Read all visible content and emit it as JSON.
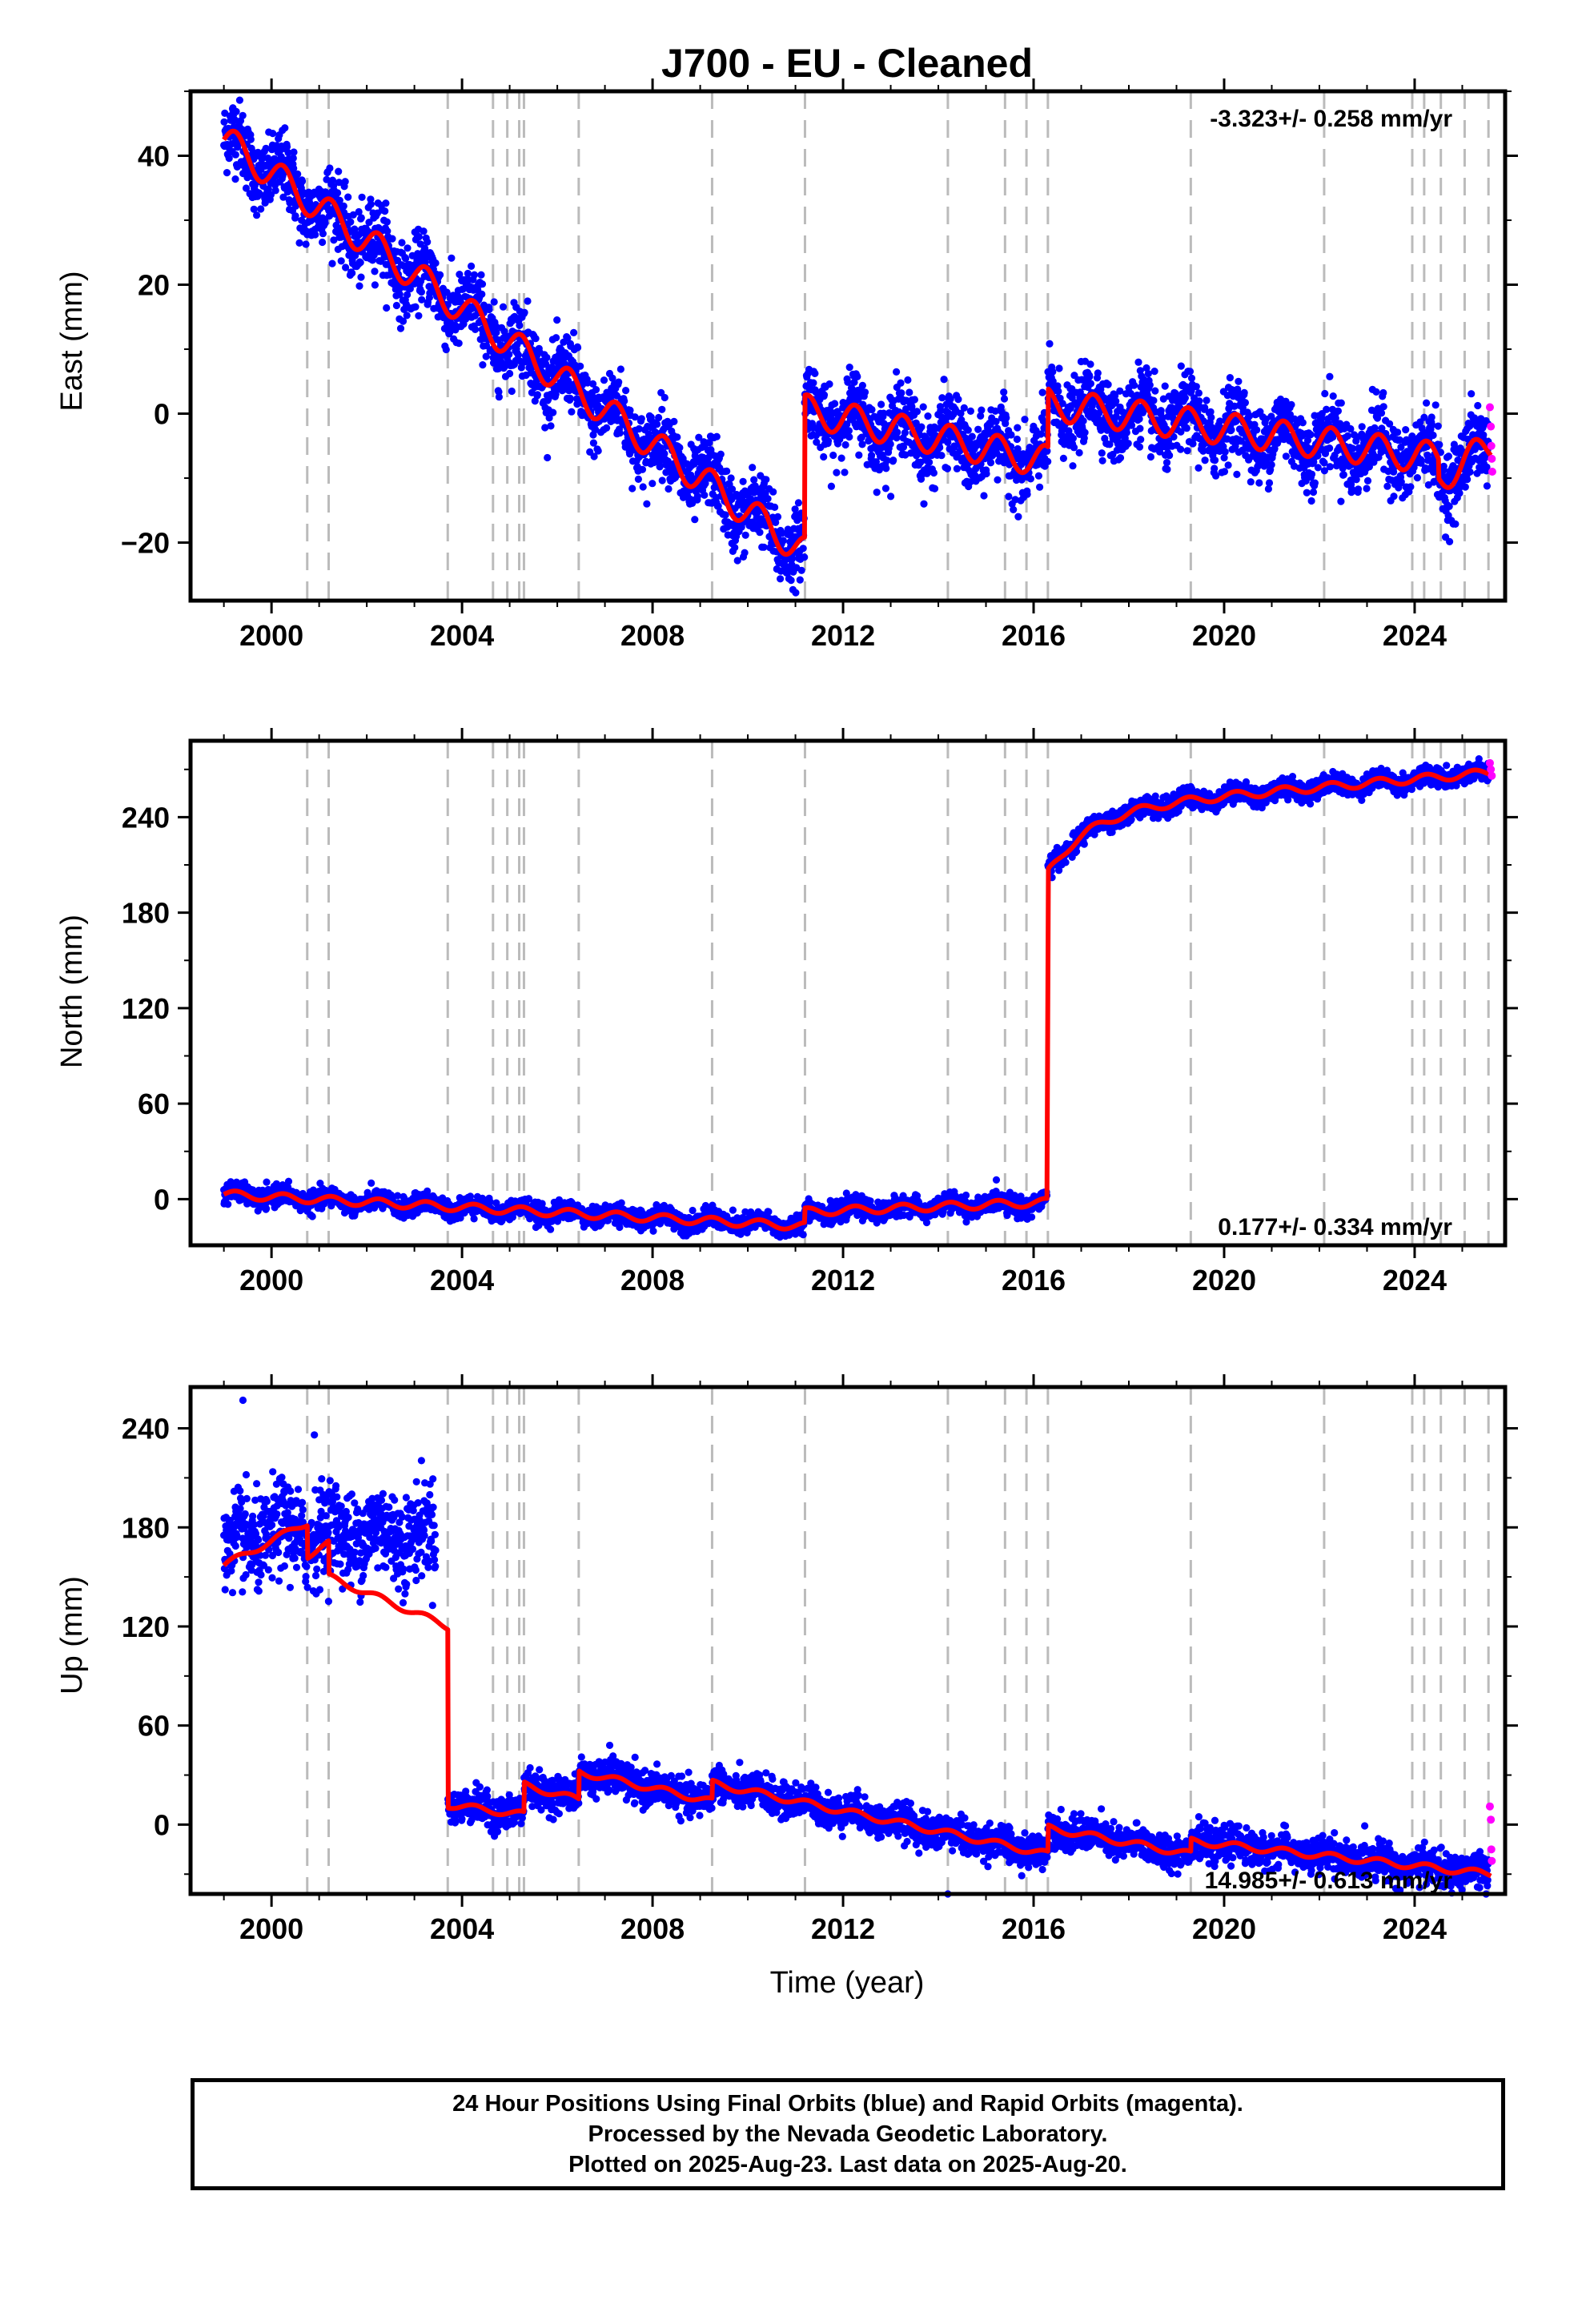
{
  "title": "J700  - EU - Cleaned",
  "colors": {
    "final_orbits": "#0000ff",
    "rapid_orbits": "#ff00ff",
    "model": "#ff0000",
    "event_lines": "#bbbbbb",
    "frame": "#000000"
  },
  "caption": {
    "line1": "24 Hour Positions Using Final Orbits (blue) and Rapid Orbits (magenta).",
    "line2": "Processed by the Nevada Geodetic Laboratory.",
    "line3": "Plotted on 2025-Aug-23. Last data on 2025-Aug-20."
  },
  "chart_data": [
    {
      "type": "scatter",
      "panel": "East",
      "title": "J700  - EU - Cleaned",
      "xlabel": "",
      "ylabel": "East (mm)",
      "xlim": [
        1998.3,
        2025.9
      ],
      "ylim": [
        -29,
        50
      ],
      "xticks": [
        2000,
        2004,
        2008,
        2012,
        2016,
        2020,
        2024
      ],
      "yticks": [
        -20,
        0,
        20,
        40
      ],
      "ytick_labels": [
        "−20",
        "0",
        "20",
        "40"
      ],
      "rate": "-3.323+/- 0.258 mm/yr",
      "rate_position": "top-right",
      "grid": false,
      "event_lines": [
        2000.75,
        2001.2,
        2003.7,
        2004.65,
        2004.95,
        2005.2,
        2005.3,
        2006.45,
        2009.25,
        2011.2,
        2014.2,
        2015.4,
        2015.85,
        2016.3,
        2019.3,
        2022.1,
        2023.95,
        2024.2,
        2024.55,
        2025.05,
        2025.55
      ],
      "model": {
        "offsets": [
          {
            "epoch": 2011.19,
            "step": 24
          },
          {
            "epoch": 2016.3,
            "step": 9
          }
        ],
        "seasonal_amplitude": 2.5,
        "segments": [
          {
            "start": 1999.0,
            "end": 2011.19,
            "value_start": 42.5,
            "value_end": -21.5
          },
          {
            "start": 2011.19,
            "end": 2016.3,
            "value_start": 0.5,
            "value_end": -7.5
          },
          {
            "start": 2016.3,
            "end": 2024.5,
            "value_start": 1.5,
            "value_end": -7
          },
          {
            "start": 2024.5,
            "end": 2025.6,
            "value_start": -10,
            "value_end": -5
          }
        ]
      },
      "final_scatter": {
        "noise": 2.8,
        "epochs_start": 1999.0,
        "epochs_end": 2025.55
      },
      "rapid_points": [
        {
          "x": 2025.58,
          "y": 1
        },
        {
          "x": 2025.6,
          "y": -2
        },
        {
          "x": 2025.61,
          "y": -5
        },
        {
          "x": 2025.62,
          "y": -7
        },
        {
          "x": 2025.63,
          "y": -9
        }
      ]
    },
    {
      "type": "scatter",
      "panel": "North",
      "xlabel": "",
      "ylabel": "North (mm)",
      "xlim": [
        1998.3,
        2025.9
      ],
      "ylim": [
        -29,
        288
      ],
      "xticks": [
        2000,
        2004,
        2008,
        2012,
        2016,
        2020,
        2024
      ],
      "yticks": [
        0,
        60,
        120,
        180,
        240
      ],
      "ytick_labels": [
        "0",
        "60",
        "120",
        "180",
        "240"
      ],
      "rate": "0.177+/- 0.334 mm/yr",
      "rate_position": "bottom-right",
      "grid": false,
      "event_lines": [
        2000.75,
        2001.2,
        2003.7,
        2004.65,
        2004.95,
        2005.2,
        2005.3,
        2006.45,
        2009.25,
        2011.2,
        2014.2,
        2015.4,
        2015.85,
        2016.3,
        2019.3,
        2022.1,
        2023.95,
        2024.2,
        2024.55,
        2025.05,
        2025.55
      ],
      "model": {
        "segments": [
          {
            "start": 1999.0,
            "end": 2011.19,
            "value_start": 3,
            "value_end": -17
          },
          {
            "start": 2011.19,
            "end": 2016.28,
            "value_start": -8,
            "value_end": -2
          },
          {
            "start": 2016.3,
            "end": 2025.6,
            "value_start": 205,
            "value_end": 268,
            "postseismic": true
          }
        ],
        "seasonal_amplitude": 2.5
      },
      "final_scatter": {
        "noise": 3.0,
        "epochs_start": 1999.0,
        "epochs_end": 2025.55
      },
      "rapid_points": [
        {
          "x": 2025.58,
          "y": 274
        },
        {
          "x": 2025.6,
          "y": 270
        },
        {
          "x": 2025.62,
          "y": 266
        }
      ]
    },
    {
      "type": "scatter",
      "panel": "Up",
      "xlabel": "Time (year)",
      "ylabel": "Up (mm)",
      "xlim": [
        1998.3,
        2025.9
      ],
      "ylim": [
        -42,
        265
      ],
      "xticks": [
        2000,
        2004,
        2008,
        2012,
        2016,
        2020,
        2024
      ],
      "yticks": [
        0,
        60,
        120,
        180,
        240
      ],
      "ytick_labels": [
        "0",
        "60",
        "120",
        "180",
        "240"
      ],
      "rate": "14.985+/- 0.613 mm/yr",
      "rate_position": "bottom-right",
      "grid": false,
      "event_lines": [
        2000.75,
        2001.2,
        2003.7,
        2004.65,
        2004.95,
        2005.2,
        2005.3,
        2006.45,
        2009.25,
        2011.2,
        2014.2,
        2015.4,
        2015.85,
        2016.3,
        2019.3,
        2022.1,
        2023.95,
        2024.2,
        2024.55,
        2025.05,
        2025.55
      ],
      "model": {
        "segments": [
          {
            "start": 1999.0,
            "end": 2000.75,
            "value_start": 157,
            "value_end": 183
          },
          {
            "start": 2000.75,
            "end": 2001.2,
            "value_start": 163,
            "value_end": 170
          },
          {
            "start": 2001.2,
            "end": 2003.7,
            "value_start": 150,
            "value_end": 120
          },
          {
            "start": 2003.7,
            "end": 2005.3,
            "value_start": 12,
            "value_end": 6
          },
          {
            "start": 2005.3,
            "end": 2006.45,
            "value_start": 24,
            "value_end": 15
          },
          {
            "start": 2006.45,
            "end": 2009.25,
            "value_start": 32,
            "value_end": 14
          },
          {
            "start": 2009.25,
            "end": 2016.3,
            "value_start": 25,
            "value_end": -18
          },
          {
            "start": 2016.3,
            "end": 2019.3,
            "value_start": -2,
            "value_end": -18
          },
          {
            "start": 2019.3,
            "end": 2025.6,
            "value_start": -10,
            "value_end": -30
          }
        ],
        "seasonal_amplitude": 2.0
      },
      "final_scatter": {
        "noise_early": 14,
        "noise_late": 5,
        "gap_start": 2003.45,
        "gap_end": 2003.7,
        "epochs_start": 1999.0,
        "epochs_end": 2025.55
      },
      "outliers": [
        {
          "x": 1999.4,
          "y": 257
        },
        {
          "x": 2000.9,
          "y": 236
        },
        {
          "x": 2007.1,
          "y": 48
        },
        {
          "x": 2014.2,
          "y": -42
        },
        {
          "x": 2025.5,
          "y": -42
        }
      ],
      "rapid_points": [
        {
          "x": 2025.58,
          "y": 11
        },
        {
          "x": 2025.6,
          "y": 3
        },
        {
          "x": 2025.61,
          "y": -15
        },
        {
          "x": 2025.62,
          "y": -22
        }
      ]
    }
  ]
}
